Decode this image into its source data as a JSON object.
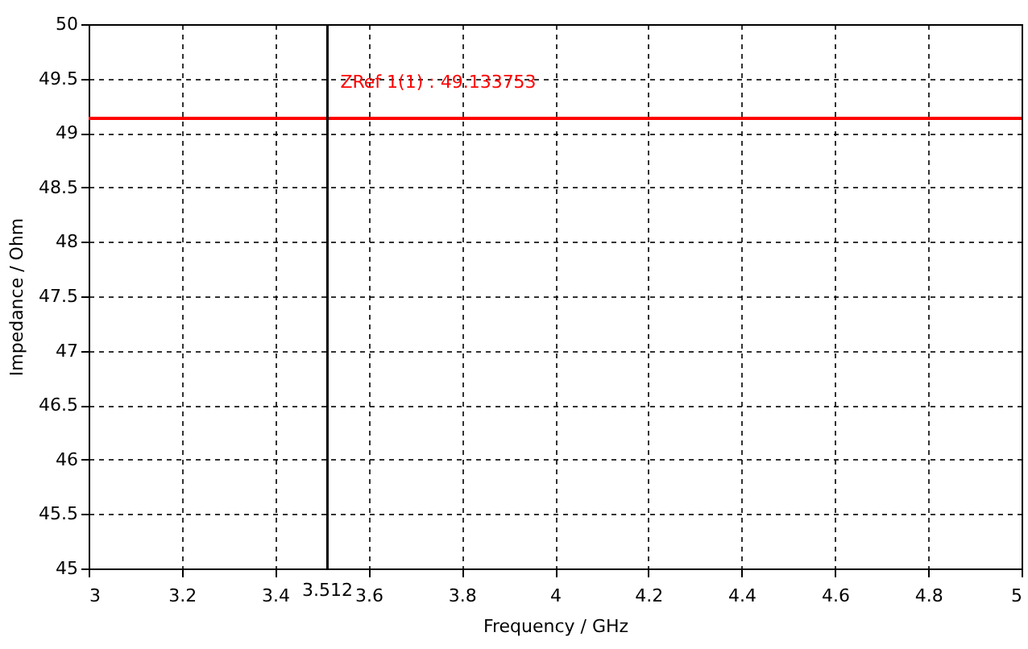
{
  "chart_data": {
    "type": "line",
    "xlabel": "Frequency / GHz",
    "ylabel": "Impedance / Ohm",
    "xlim": [
      3,
      5
    ],
    "xticks": [
      3,
      3.2,
      3.4,
      3.6,
      3.8,
      4,
      4.2,
      4.4,
      4.6,
      4.8,
      5
    ],
    "ylim": [
      45,
      50
    ],
    "yticks": [
      45,
      45.5,
      46,
      46.5,
      47,
      47.5,
      48,
      48.5,
      49,
      49.5,
      50
    ],
    "grid": true,
    "series": [
      {
        "x": [
          3,
          5
        ],
        "values": [
          49.133753,
          49.133753
        ],
        "color": "#ff0000"
      }
    ],
    "ref_lines": [
      {
        "axis": "x",
        "value": 3.512,
        "label": "3.512",
        "color": "#000000"
      }
    ],
    "annotations": [
      {
        "text": "ZRef 1(1) : 49.133753",
        "x": 3.512,
        "y": 49.133753
      }
    ]
  }
}
